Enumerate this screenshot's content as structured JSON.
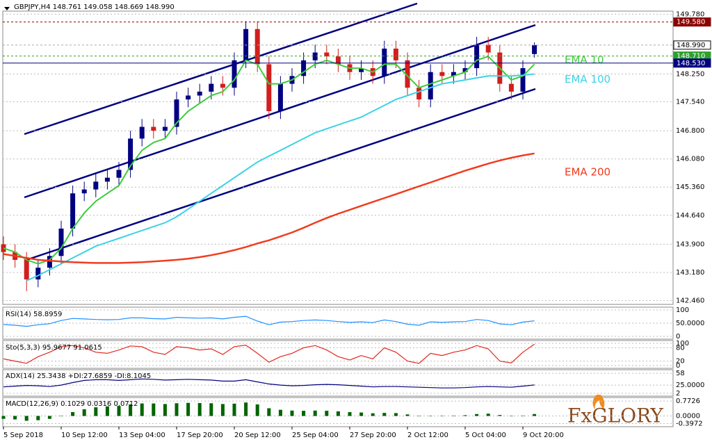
{
  "brand": "FxGLORY",
  "chart_data": [
    {
      "type": "candlestick",
      "title": "GBPJPY,H4  148.761 149.058 148.669 148.990",
      "categories": [
        "5 Sep 2018",
        null,
        null,
        null,
        null,
        "10 Sep 12:00",
        null,
        null,
        null,
        null,
        "13 Sep 04:00",
        null,
        null,
        null,
        null,
        "17 Sep 20:00",
        null,
        null,
        null,
        null,
        "20 Sep 12:00",
        null,
        null,
        null,
        null,
        "25 Sep 04:00",
        null,
        null,
        null,
        null,
        "27 Sep 20:00",
        null,
        null,
        null,
        null,
        "2 Oct 12:00",
        null,
        null,
        null,
        null,
        "5 Oct 04:00",
        null,
        null,
        null,
        null,
        "9 Oct 20:00",
        null
      ],
      "open": [
        143.9,
        143.7,
        143.5,
        143.0,
        143.3,
        143.6,
        144.3,
        145.2,
        145.3,
        145.5,
        145.6,
        145.8,
        146.6,
        146.9,
        146.8,
        146.9,
        147.6,
        147.7,
        147.8,
        148.0,
        147.9,
        148.6,
        149.4,
        148.5,
        147.3,
        148.0,
        148.2,
        148.6,
        148.8,
        148.7,
        148.5,
        148.3,
        148.4,
        148.2,
        148.9,
        148.6,
        147.9,
        147.6,
        148.3,
        148.2,
        148.3,
        148.4,
        149.0,
        148.8,
        148.0,
        147.8,
        148.761
      ],
      "high": [
        144.1,
        143.9,
        143.7,
        143.5,
        143.8,
        144.5,
        145.4,
        145.5,
        145.7,
        145.8,
        146.0,
        146.8,
        147.1,
        147.1,
        147.1,
        147.8,
        147.9,
        148.0,
        148.2,
        148.2,
        148.8,
        149.6,
        149.6,
        148.7,
        148.2,
        148.4,
        148.8,
        149.0,
        149.0,
        148.9,
        148.7,
        148.6,
        148.6,
        149.1,
        149.1,
        148.8,
        148.1,
        148.5,
        148.5,
        148.5,
        148.6,
        149.2,
        149.2,
        149.0,
        148.2,
        148.6,
        149.058
      ],
      "low": [
        143.5,
        143.3,
        142.7,
        142.8,
        143.1,
        143.4,
        144.1,
        145.0,
        145.1,
        145.3,
        145.4,
        145.6,
        146.4,
        146.6,
        146.6,
        146.7,
        147.4,
        147.5,
        147.6,
        147.7,
        147.7,
        148.4,
        148.3,
        147.1,
        147.1,
        147.8,
        148.0,
        148.4,
        148.5,
        148.3,
        148.1,
        148.1,
        148.0,
        148.0,
        148.4,
        147.7,
        147.4,
        147.4,
        148.0,
        148.0,
        148.1,
        148.2,
        148.6,
        147.8,
        147.6,
        147.6,
        148.669
      ],
      "close": [
        143.7,
        143.5,
        143.0,
        143.3,
        143.6,
        144.3,
        145.2,
        145.3,
        145.5,
        145.6,
        145.8,
        146.6,
        146.9,
        146.8,
        146.9,
        147.6,
        147.7,
        147.8,
        148.0,
        147.9,
        148.6,
        149.4,
        148.5,
        147.3,
        148.0,
        148.2,
        148.6,
        148.8,
        148.7,
        148.5,
        148.3,
        148.4,
        148.2,
        148.9,
        148.6,
        147.9,
        147.6,
        148.3,
        148.2,
        148.3,
        148.4,
        149.0,
        148.8,
        148.0,
        147.8,
        148.4,
        148.99
      ],
      "up_color": "#000080",
      "down_color": "#d21e1e",
      "series": [
        {
          "name": "EMA 10",
          "color": "#3ccc3c",
          "values": [
            143.8,
            143.7,
            143.5,
            143.4,
            143.5,
            143.8,
            144.3,
            144.7,
            145.0,
            145.2,
            145.4,
            145.9,
            146.3,
            146.5,
            146.6,
            147.0,
            147.3,
            147.5,
            147.7,
            147.8,
            148.1,
            148.6,
            148.5,
            148.0,
            148.0,
            148.1,
            148.3,
            148.5,
            148.6,
            148.5,
            148.4,
            148.4,
            148.3,
            148.5,
            148.5,
            148.2,
            147.9,
            148.0,
            148.1,
            148.2,
            148.3,
            148.6,
            148.7,
            148.4,
            148.1,
            148.2,
            148.5
          ]
        },
        {
          "name": "EMA 100",
          "color": "#3cd2e6",
          "values": [
            null,
            null,
            142.97,
            143.1,
            143.25,
            143.4,
            143.55,
            143.7,
            143.85,
            143.95,
            144.05,
            144.15,
            144.25,
            144.35,
            144.45,
            144.6,
            144.8,
            145.0,
            145.2,
            145.4,
            145.6,
            145.8,
            146.0,
            146.15,
            146.3,
            146.45,
            146.6,
            146.75,
            146.85,
            146.95,
            147.05,
            147.15,
            147.3,
            147.45,
            147.6,
            147.7,
            147.8,
            147.9,
            148.0,
            148.05,
            148.1,
            148.15,
            148.2,
            148.2,
            148.2,
            148.22,
            148.25
          ]
        },
        {
          "name": "EMA 200",
          "color": "#f03c1e",
          "values": [
            143.65,
            143.6,
            143.55,
            143.5,
            143.48,
            143.46,
            143.44,
            143.43,
            143.42,
            143.42,
            143.42,
            143.43,
            143.44,
            143.46,
            143.48,
            143.5,
            143.53,
            143.57,
            143.62,
            143.68,
            143.75,
            143.83,
            143.92,
            144.0,
            144.1,
            144.2,
            144.32,
            144.45,
            144.57,
            144.68,
            144.78,
            144.88,
            144.98,
            145.08,
            145.18,
            145.28,
            145.38,
            145.48,
            145.58,
            145.68,
            145.78,
            145.87,
            145.96,
            146.04,
            146.11,
            146.17,
            146.22
          ]
        }
      ],
      "ylim": [
        142.38,
        149.84
      ],
      "yticks": [
        {
          "value": 142.46,
          "label": "142.460"
        },
        {
          "value": 143.18,
          "label": "143.180"
        },
        {
          "value": 143.9,
          "label": "143.900"
        },
        {
          "value": 144.64,
          "label": "144.640"
        },
        {
          "value": 145.36,
          "label": "145.360"
        },
        {
          "value": 146.08,
          "label": "146.080"
        },
        {
          "value": 146.8,
          "label": "146.800"
        },
        {
          "value": 147.54,
          "label": "147.540"
        },
        {
          "value": 148.25,
          "label": "148.250"
        },
        {
          "value": 149.78,
          "label": "149.780"
        }
      ],
      "levels": [
        {
          "value": 149.58,
          "label": "149.580",
          "color": "#8b0000"
        },
        {
          "value": 148.99,
          "label": "148.990",
          "color": "#ffffff"
        },
        {
          "value": 148.71,
          "label": "148.710",
          "color": "#2ca02c"
        },
        {
          "value": 148.53,
          "label": "148.530",
          "color": "#000080"
        }
      ]
    },
    {
      "type": "line",
      "title": "RSI(14) 58.8959",
      "color": "#1e90ff",
      "values": [
        45,
        42,
        38,
        44,
        48,
        60,
        68,
        66,
        64,
        63,
        64,
        70,
        70,
        67,
        66,
        72,
        70,
        69,
        70,
        66,
        72,
        76,
        58,
        44,
        54,
        56,
        60,
        62,
        60,
        56,
        53,
        55,
        52,
        62,
        56,
        46,
        42,
        55,
        53,
        55,
        56,
        64,
        60,
        47,
        44,
        54,
        58.9
      ],
      "ylim": [
        0,
        100
      ],
      "yticks": [
        100,
        {
          "value": 50,
          "label": "50.0000"
        },
        0
      ]
    },
    {
      "type": "line",
      "title": "Sto(5,3,3) 95.9677 91.0615",
      "color": "#e0281e",
      "values": [
        30,
        20,
        10,
        40,
        60,
        85,
        90,
        80,
        60,
        55,
        70,
        88,
        85,
        60,
        50,
        85,
        80,
        70,
        75,
        50,
        85,
        92,
        55,
        15,
        40,
        55,
        80,
        90,
        70,
        40,
        25,
        45,
        30,
        80,
        60,
        20,
        10,
        55,
        45,
        60,
        70,
        90,
        75,
        20,
        12,
        60,
        96
      ],
      "ylim": [
        0,
        100
      ],
      "yticks": [
        100,
        80,
        20,
        0
      ]
    },
    {
      "type": "line",
      "title": "ADX(14) 25.3438 +DI:27.6859 -DI:8.1045",
      "color": "#000080",
      "values": [
        20,
        22,
        24,
        23,
        21,
        25,
        32,
        38,
        40,
        40,
        38,
        40,
        42,
        41,
        39,
        40,
        41,
        40,
        39,
        36,
        36,
        40,
        34,
        28,
        25,
        23,
        24,
        26,
        27,
        26,
        24,
        22,
        20,
        21,
        21,
        20,
        19,
        18,
        17,
        17,
        18,
        20,
        21,
        20,
        19,
        22,
        25.3
      ],
      "ylim": [
        0,
        62
      ],
      "yticks": [
        58,
        {
          "value": 25,
          "label": "25.0000"
        },
        2
      ]
    },
    {
      "type": "bar",
      "title": "MACD(12,26,9) 0.1029 0.0316 0.0712",
      "color": "#006400",
      "values": [
        -0.15,
        -0.18,
        -0.25,
        -0.22,
        -0.15,
        0.0,
        0.2,
        0.35,
        0.45,
        0.5,
        0.52,
        0.6,
        0.65,
        0.65,
        0.62,
        0.66,
        0.68,
        0.67,
        0.66,
        0.62,
        0.64,
        0.7,
        0.6,
        0.4,
        0.32,
        0.28,
        0.27,
        0.28,
        0.27,
        0.24,
        0.2,
        0.18,
        0.14,
        0.16,
        0.15,
        0.08,
        0.0,
        0.0,
        0.0,
        0.02,
        0.04,
        0.1,
        0.12,
        0.05,
        0.0,
        0.02,
        0.1
      ],
      "ylim": [
        -0.45,
        0.85
      ],
      "yticks": [
        0.7726,
        {
          "value": 0,
          "label": "0.0000"
        },
        {
          "value": -0.3972,
          "label": "-0.3972"
        }
      ]
    }
  ]
}
